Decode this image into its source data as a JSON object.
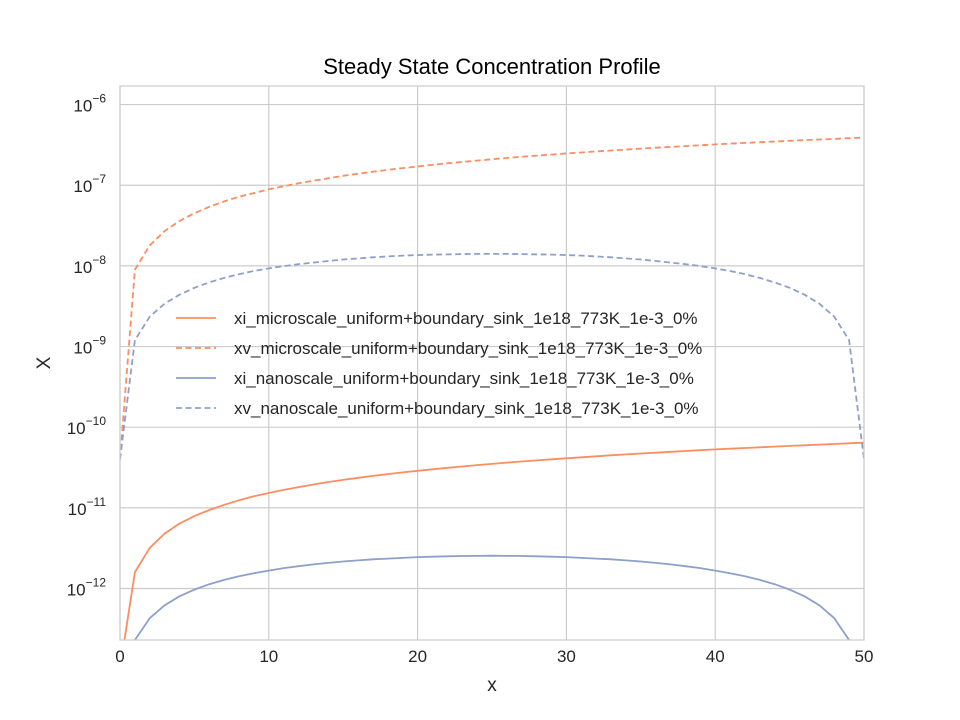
{
  "chart_data": {
    "type": "line",
    "title": "Steady State Concentration Profile",
    "xlabel": "x",
    "ylabel": "X",
    "xlim": [
      0,
      50
    ],
    "ylim": [
      2.3e-13,
      1.7e-06
    ],
    "yscale": "log",
    "grid": true,
    "legend_position": "center-left",
    "x_ticks": [
      {
        "value": 0,
        "label": "0"
      },
      {
        "value": 10,
        "label": "10"
      },
      {
        "value": 20,
        "label": "20"
      },
      {
        "value": 30,
        "label": "30"
      },
      {
        "value": 40,
        "label": "40"
      },
      {
        "value": 50,
        "label": "50"
      }
    ],
    "y_ticks": [
      {
        "value": 1e-12,
        "base": "10",
        "exp": "−12"
      },
      {
        "value": 1e-11,
        "base": "10",
        "exp": "−11"
      },
      {
        "value": 1e-10,
        "base": "10",
        "exp": "−10"
      },
      {
        "value": 1e-09,
        "base": "10",
        "exp": "−9"
      },
      {
        "value": 1e-08,
        "base": "10",
        "exp": "−8"
      },
      {
        "value": 1e-07,
        "base": "10",
        "exp": "−7"
      },
      {
        "value": 1e-06,
        "base": "10",
        "exp": "−6"
      }
    ],
    "x": [
      0,
      1,
      2,
      3,
      4,
      5,
      6,
      7,
      8,
      9,
      10,
      11,
      12,
      13,
      14,
      15,
      16,
      17,
      18,
      19,
      20,
      21,
      22,
      23,
      24,
      25,
      26,
      27,
      28,
      29,
      30,
      31,
      32,
      33,
      34,
      35,
      36,
      37,
      38,
      39,
      40,
      41,
      42,
      43,
      44,
      45,
      46,
      47,
      48,
      49,
      50
    ],
    "series": [
      {
        "name": "xi_microscale_uniform+boundary_sink_1e18_773K_1e-3_0%",
        "color": "#fc8d62",
        "dash": "solid",
        "values": [
          1e-13,
          1.6e-12,
          3.2e-12,
          4.8e-12,
          6.4e-12,
          7.9e-12,
          9.4e-12,
          1.09e-11,
          1.24e-11,
          1.39e-11,
          1.53e-11,
          1.67e-11,
          1.81e-11,
          1.95e-11,
          2.09e-11,
          2.22e-11,
          2.36e-11,
          2.49e-11,
          2.62e-11,
          2.75e-11,
          2.88e-11,
          3.01e-11,
          3.14e-11,
          3.26e-11,
          3.39e-11,
          3.51e-11,
          3.64e-11,
          3.76e-11,
          3.88e-11,
          4e-11,
          4.12e-11,
          4.24e-11,
          4.36e-11,
          4.48e-11,
          4.6e-11,
          4.72e-11,
          4.83e-11,
          4.95e-11,
          5.07e-11,
          5.18e-11,
          5.3e-11,
          5.41e-11,
          5.52e-11,
          5.64e-11,
          5.75e-11,
          5.86e-11,
          5.97e-11,
          6.09e-11,
          6.2e-11,
          6.31e-11,
          6.42e-11
        ]
      },
      {
        "name": "xv_microscale_uniform+boundary_sink_1e18_773K_1e-3_0%",
        "color": "#fc8d62",
        "dash": "dashed",
        "values": [
          4e-11,
          9e-09,
          1.8e-08,
          2.7e-08,
          3.6e-08,
          4.5e-08,
          5.4e-08,
          6.3e-08,
          7.2e-08,
          8e-08,
          8.9e-08,
          9.7e-08,
          1.06e-07,
          1.14e-07,
          1.22e-07,
          1.31e-07,
          1.39e-07,
          1.47e-07,
          1.55e-07,
          1.63e-07,
          1.71e-07,
          1.79e-07,
          1.87e-07,
          1.94e-07,
          2.02e-07,
          2.1e-07,
          2.18e-07,
          2.25e-07,
          2.33e-07,
          2.4e-07,
          2.48e-07,
          2.55e-07,
          2.63e-07,
          2.7e-07,
          2.77e-07,
          2.85e-07,
          2.92e-07,
          2.99e-07,
          3.06e-07,
          3.13e-07,
          3.21e-07,
          3.28e-07,
          3.35e-07,
          3.42e-07,
          3.49e-07,
          3.56e-07,
          3.63e-07,
          3.69e-07,
          3.76e-07,
          3.83e-07,
          3.9e-07
        ]
      },
      {
        "name": "xi_nanoscale_uniform+boundary_sink_1e18_773K_1e-3_0%",
        "color": "#8da0cb",
        "dash": "solid",
        "values": [
          1e-13,
          2.3e-13,
          4.3e-13,
          6.2e-13,
          8e-13,
          9.7e-13,
          1.13e-12,
          1.28e-12,
          1.42e-12,
          1.55e-12,
          1.67e-12,
          1.79e-12,
          1.89e-12,
          1.99e-12,
          2.08e-12,
          2.16e-12,
          2.23e-12,
          2.3e-12,
          2.35e-12,
          2.4e-12,
          2.45e-12,
          2.48e-12,
          2.51e-12,
          2.53e-12,
          2.54e-12,
          2.55e-12,
          2.54e-12,
          2.53e-12,
          2.51e-12,
          2.48e-12,
          2.45e-12,
          2.4e-12,
          2.35e-12,
          2.3e-12,
          2.23e-12,
          2.16e-12,
          2.08e-12,
          1.99e-12,
          1.89e-12,
          1.79e-12,
          1.67e-12,
          1.55e-12,
          1.42e-12,
          1.28e-12,
          1.13e-12,
          9.7e-13,
          8e-13,
          6.2e-13,
          4.3e-13,
          2.3e-13,
          1e-13
        ]
      },
      {
        "name": "xv_nanoscale_uniform+boundary_sink_1e18_773K_1e-3_0%",
        "color": "#8da0cb",
        "dash": "dashed",
        "values": [
          4e-11,
          1.2e-09,
          2.35e-09,
          3.4e-09,
          4.4e-09,
          5.35e-09,
          6.25e-09,
          7.1e-09,
          7.9e-09,
          8.65e-09,
          9.3e-09,
          9.95e-09,
          1.05e-08,
          1.1e-08,
          1.15e-08,
          1.2e-08,
          1.24e-08,
          1.28e-08,
          1.31e-08,
          1.34e-08,
          1.36e-08,
          1.38e-08,
          1.39e-08,
          1.4e-08,
          1.41e-08,
          1.41e-08,
          1.41e-08,
          1.4e-08,
          1.39e-08,
          1.38e-08,
          1.36e-08,
          1.34e-08,
          1.31e-08,
          1.28e-08,
          1.24e-08,
          1.2e-08,
          1.15e-08,
          1.1e-08,
          1.05e-08,
          9.95e-09,
          9.3e-09,
          8.65e-09,
          7.9e-09,
          7.1e-09,
          6.25e-09,
          5.35e-09,
          4.4e-09,
          3.4e-09,
          2.35e-09,
          1.2e-09,
          4e-11
        ]
      }
    ]
  }
}
